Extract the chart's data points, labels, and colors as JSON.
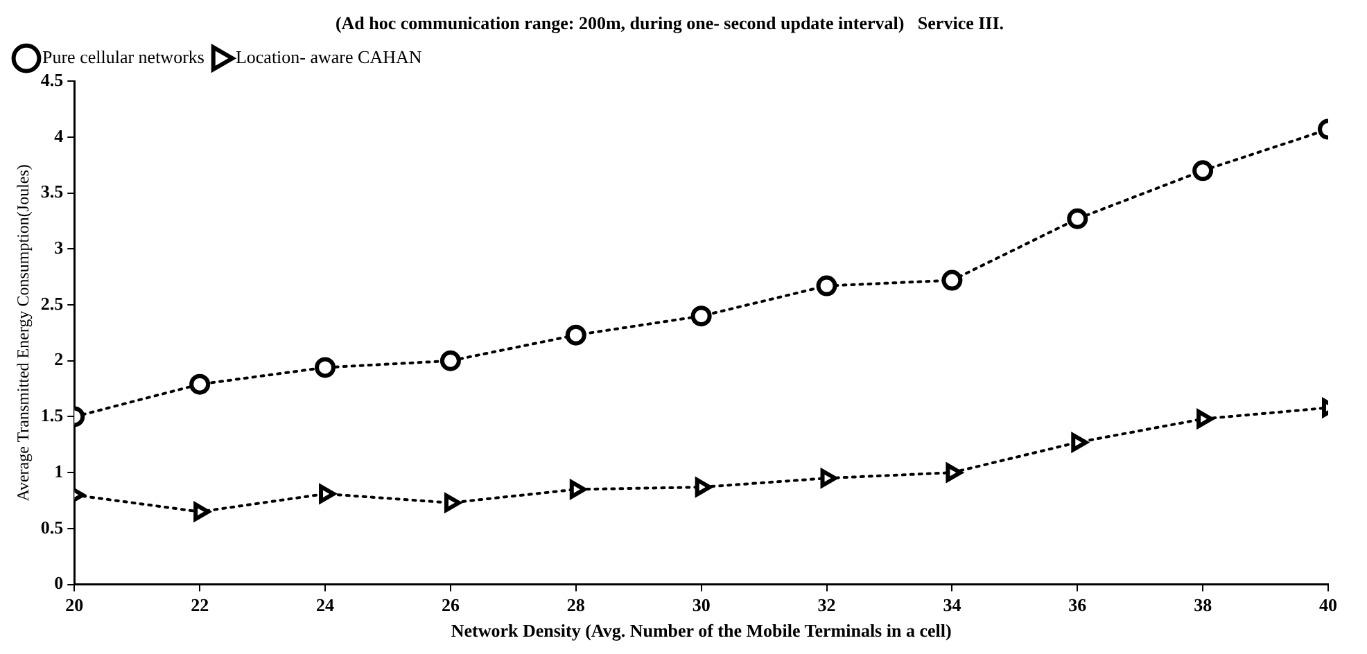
{
  "chart_data": {
    "type": "line",
    "title": "(Ad hoc communication range: 200m, during one- second update interval)   Service III.",
    "xlabel": "Network Density (Avg. Number of the Mobile Terminals in a cell)",
    "ylabel": "Average Transmitted Energy Consumption(Joules)",
    "x": [
      20,
      22,
      24,
      26,
      28,
      30,
      32,
      34,
      36,
      38,
      40
    ],
    "series": [
      {
        "name": "Pure cellular networks",
        "color": "#000000",
        "marker": "circle",
        "values": [
          1.5,
          1.79,
          1.94,
          2.0,
          2.23,
          2.4,
          2.67,
          2.72,
          3.27,
          3.7,
          4.07
        ]
      },
      {
        "name": "Location- aware CAHAN",
        "color": "#000000",
        "marker": "triangle",
        "values": [
          0.8,
          0.65,
          0.81,
          0.73,
          0.85,
          0.87,
          0.95,
          1.0,
          1.27,
          1.48,
          1.58
        ]
      }
    ],
    "xlim": [
      20,
      40
    ],
    "xticks": [
      20,
      22,
      24,
      26,
      28,
      30,
      32,
      34,
      36,
      38,
      40
    ],
    "ylim": [
      0,
      4.5
    ],
    "yticks": [
      0,
      0.5,
      1,
      1.5,
      2,
      2.5,
      3,
      3.5,
      4,
      4.5
    ],
    "grid": false,
    "legend": "top left",
    "line_style": "dotted"
  }
}
